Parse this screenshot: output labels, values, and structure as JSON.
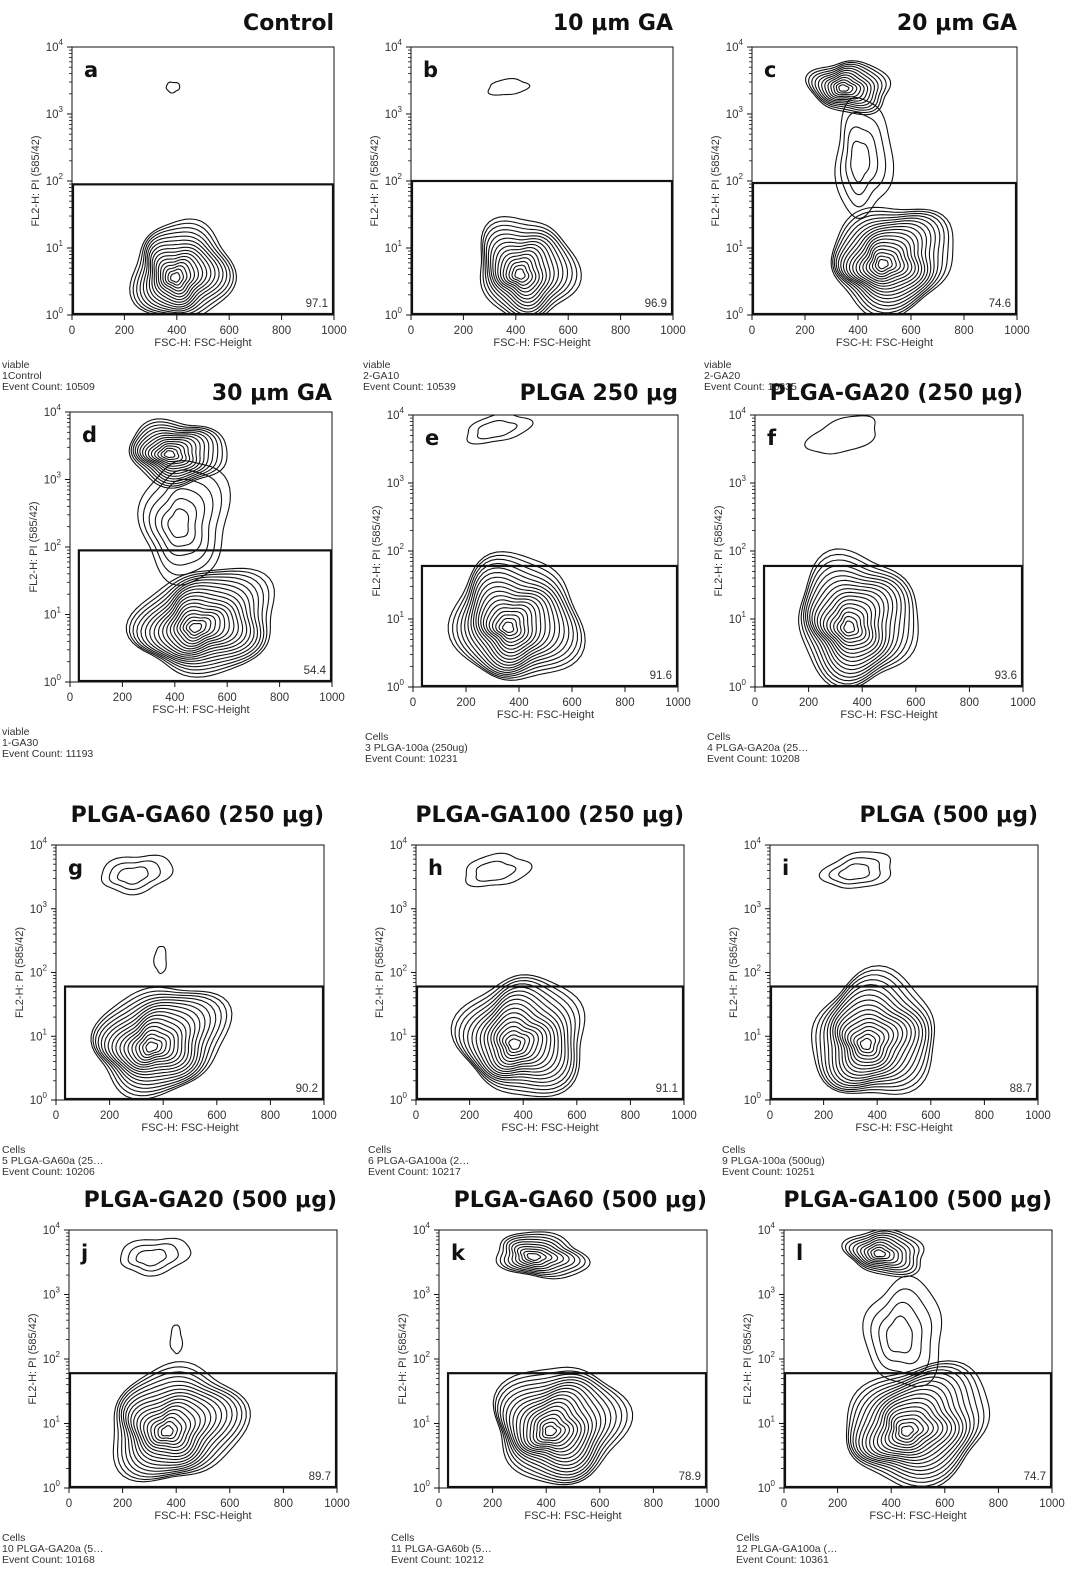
{
  "chart_data": [
    {
      "type": "contour",
      "letter": "a",
      "title": "Control",
      "xlabel": "FSC-H: FSC-Height",
      "ylabel": "FL2-H: PI (585/42)",
      "xlim": [
        0,
        1000
      ],
      "ylim_log10": [
        0,
        4
      ],
      "xticks": [
        "0",
        "200",
        "400",
        "600",
        "800",
        "1000"
      ],
      "gate": {
        "x": [
          0,
          1000
        ],
        "y_max_log10": 1.95,
        "percent": "97.1"
      },
      "populations": [
        {
          "x": 420,
          "y_log10": 0.65,
          "rx": 190,
          "ry": 0.75,
          "angle": 18,
          "levels": 16
        },
        {
          "x": 385,
          "y_log10": 3.4,
          "rx": 25,
          "ry": 0.08,
          "angle": 0,
          "levels": 1
        }
      ],
      "info": [
        "viable",
        "1Control",
        "Event Count: 10509"
      ]
    },
    {
      "type": "contour",
      "letter": "b",
      "title": "10 μm GA",
      "xlabel": "FSC-H: FSC-Height",
      "ylabel": "FL2-H: PI (585/42)",
      "xlim": [
        0,
        1000
      ],
      "ylim_log10": [
        0,
        4
      ],
      "xticks": [
        "0",
        "200",
        "400",
        "600",
        "800",
        "1000"
      ],
      "gate": {
        "x": [
          0,
          1000
        ],
        "y_max_log10": 2.0,
        "percent": "96.9"
      },
      "populations": [
        {
          "x": 440,
          "y_log10": 0.7,
          "rx": 185,
          "ry": 0.78,
          "angle": 18,
          "levels": 15
        },
        {
          "x": 370,
          "y_log10": 3.4,
          "rx": 75,
          "ry": 0.12,
          "angle": 5,
          "levels": 1
        }
      ],
      "info": [
        "viable",
        "2-GA10",
        "Event Count: 10539"
      ]
    },
    {
      "type": "contour",
      "letter": "c",
      "title": "20 μm GA",
      "xlabel": "FSC-H: FSC-Height",
      "ylabel": "FL2-H: PI (585/42)",
      "xlim": [
        0,
        1000
      ],
      "ylim_log10": [
        0,
        4
      ],
      "xticks": [
        "0",
        "200",
        "400",
        "600",
        "800",
        "1000"
      ],
      "gate": {
        "x": [
          0,
          1000
        ],
        "y_max_log10": 1.97,
        "percent": "74.6"
      },
      "populations": [
        {
          "x": 530,
          "y_log10": 0.85,
          "rx": 240,
          "ry": 0.78,
          "angle": 12,
          "levels": 18
        },
        {
          "x": 370,
          "y_log10": 3.4,
          "rx": 150,
          "ry": 0.4,
          "angle": -8,
          "levels": 12
        },
        {
          "x": 420,
          "y_log10": 2.35,
          "rx": 110,
          "ry": 0.85,
          "angle": 0,
          "levels": 4
        }
      ],
      "info": [
        "viable",
        "2-GA20",
        "Event Count: 10835"
      ]
    },
    {
      "type": "contour",
      "letter": "d",
      "title": "30 μm GA",
      "xlabel": "FSC-H: FSC-Height",
      "ylabel": "FL2-H: PI (585/42)",
      "xlim": [
        0,
        1000
      ],
      "ylim_log10": [
        0,
        4
      ],
      "xticks": [
        "0",
        "200",
        "400",
        "600",
        "800",
        "1000"
      ],
      "gate": {
        "x": [
          30,
          1000
        ],
        "y_max_log10": 1.95,
        "percent": "54.4"
      },
      "populations": [
        {
          "x": 520,
          "y_log10": 0.9,
          "rx": 270,
          "ry": 0.8,
          "angle": 12,
          "levels": 18
        },
        {
          "x": 410,
          "y_log10": 3.4,
          "rx": 180,
          "ry": 0.5,
          "angle": -5,
          "levels": 14
        },
        {
          "x": 440,
          "y_log10": 2.4,
          "rx": 170,
          "ry": 0.9,
          "angle": 0,
          "levels": 6
        }
      ],
      "info": [
        "viable",
        "1-GA30",
        "Event Count: 11193"
      ]
    },
    {
      "type": "contour",
      "letter": "e",
      "title": "PLGA 250 μg",
      "xlabel": "FSC-H: FSC-Height",
      "ylabel": "FL2-H: PI (585/42)",
      "xlim": [
        0,
        1000
      ],
      "ylim_log10": [
        0,
        4
      ],
      "xticks": [
        "0",
        "200",
        "400",
        "600",
        "800",
        "1000"
      ],
      "gate": {
        "x": [
          30,
          1000
        ],
        "y_max_log10": 1.78,
        "percent": "91.6"
      },
      "populations": [
        {
          "x": 390,
          "y_log10": 1.0,
          "rx": 240,
          "ry": 0.95,
          "angle": 22,
          "levels": 18
        },
        {
          "x": 320,
          "y_log10": 3.8,
          "rx": 120,
          "ry": 0.2,
          "angle": 12,
          "levels": 2
        }
      ],
      "info": [
        "Cells",
        "3 PLGA-100a (250ug)",
        "Event Count: 10231"
      ]
    },
    {
      "type": "contour",
      "letter": "f",
      "title": "PLGA-GA20 (250 μg)",
      "xlabel": "FSC-H: FSC-Height",
      "ylabel": "FL2-H: PI (585/42)",
      "xlim": [
        0,
        1000
      ],
      "ylim_log10": [
        0,
        4
      ],
      "xticks": [
        "0",
        "200",
        "400",
        "600",
        "800",
        "1000"
      ],
      "gate": {
        "x": [
          30,
          1000
        ],
        "y_max_log10": 1.78,
        "percent": "93.6"
      },
      "populations": [
        {
          "x": 380,
          "y_log10": 1.0,
          "rx": 230,
          "ry": 0.95,
          "angle": 22,
          "levels": 17
        },
        {
          "x": 330,
          "y_log10": 3.7,
          "rx": 130,
          "ry": 0.25,
          "angle": 18,
          "levels": 1
        }
      ],
      "info": [
        "Cells",
        "4 PLGA-GA20a (25…",
        "Event Count: 10208"
      ]
    },
    {
      "type": "contour",
      "letter": "g",
      "title": "PLGA-GA60 (250 μg)",
      "xlabel": "FSC-H: FSC-Height",
      "ylabel": "FL2-H: PI (585/42)",
      "xlim": [
        0,
        1000
      ],
      "ylim_log10": [
        0,
        4
      ],
      "xticks": [
        "0",
        "200",
        "400",
        "600",
        "800",
        "1000"
      ],
      "gate": {
        "x": [
          30,
          1000
        ],
        "y_max_log10": 1.78,
        "percent": "90.2"
      },
      "populations": [
        {
          "x": 390,
          "y_log10": 0.95,
          "rx": 250,
          "ry": 0.85,
          "angle": 20,
          "levels": 17
        },
        {
          "x": 300,
          "y_log10": 3.55,
          "rx": 130,
          "ry": 0.3,
          "angle": 10,
          "levels": 3
        },
        {
          "x": 390,
          "y_log10": 2.2,
          "rx": 22,
          "ry": 0.22,
          "angle": 0,
          "levels": 1
        }
      ],
      "info": [
        "Cells",
        "5 PLGA-GA60a (25…",
        "Event Count: 10206"
      ]
    },
    {
      "type": "contour",
      "letter": "h",
      "title": "PLGA-GA100 (250 μg)",
      "xlabel": "FSC-H: FSC-Height",
      "ylabel": "FL2-H: PI (585/42)",
      "xlim": [
        0,
        1000
      ],
      "ylim_log10": [
        0,
        4
      ],
      "xticks": [
        "0",
        "200",
        "400",
        "600",
        "800",
        "1000"
      ],
      "gate": {
        "x": [
          0,
          1000
        ],
        "y_max_log10": 1.78,
        "percent": "91.1"
      },
      "populations": [
        {
          "x": 400,
          "y_log10": 1.0,
          "rx": 240,
          "ry": 0.95,
          "angle": 20,
          "levels": 17
        },
        {
          "x": 300,
          "y_log10": 3.6,
          "rx": 120,
          "ry": 0.25,
          "angle": 10,
          "levels": 2
        }
      ],
      "info": [
        "Cells",
        "6 PLGA-GA100a (2…",
        "Event Count: 10217"
      ]
    },
    {
      "type": "contour",
      "letter": "i",
      "title": "PLGA (500 μg)",
      "xlabel": "FSC-H: FSC-Height",
      "ylabel": "FL2-H: PI (585/42)",
      "xlim": [
        0,
        1000
      ],
      "ylim_log10": [
        0,
        4
      ],
      "xticks": [
        "0",
        "200",
        "400",
        "600",
        "800",
        "1000"
      ],
      "gate": {
        "x": [
          0,
          1000
        ],
        "y_max_log10": 1.78,
        "percent": "88.7"
      },
      "populations": [
        {
          "x": 390,
          "y_log10": 1.0,
          "rx": 240,
          "ry": 0.95,
          "angle": 20,
          "levels": 17
        },
        {
          "x": 330,
          "y_log10": 3.6,
          "rx": 130,
          "ry": 0.28,
          "angle": 12,
          "levels": 3
        }
      ],
      "info": [
        "Cells",
        "9 PLGA-100a (500ug)",
        "Event Count: 10251"
      ]
    },
    {
      "type": "contour",
      "letter": "j",
      "title": "PLGA-GA20 (500 μg)",
      "xlabel": "FSC-H: FSC-Height",
      "ylabel": "FL2-H: PI (585/42)",
      "xlim": [
        0,
        1000
      ],
      "ylim_log10": [
        0,
        4
      ],
      "xticks": [
        "0",
        "200",
        "400",
        "600",
        "800",
        "1000"
      ],
      "gate": {
        "x": [
          0,
          1000
        ],
        "y_max_log10": 1.78,
        "percent": "89.7"
      },
      "populations": [
        {
          "x": 400,
          "y_log10": 1.0,
          "rx": 250,
          "ry": 0.9,
          "angle": 20,
          "levels": 17
        },
        {
          "x": 320,
          "y_log10": 3.6,
          "rx": 130,
          "ry": 0.28,
          "angle": 10,
          "levels": 3
        },
        {
          "x": 400,
          "y_log10": 2.3,
          "rx": 22,
          "ry": 0.22,
          "angle": 0,
          "levels": 1
        }
      ],
      "info": [
        "Cells",
        "10 PLGA-GA20a (5…",
        "Event Count: 10168"
      ]
    },
    {
      "type": "contour",
      "letter": "k",
      "title": "PLGA-GA60 (500 μg)",
      "xlabel": "FSC-H: FSC-Height",
      "ylabel": "FL2-H: PI (585/42)",
      "xlim": [
        0,
        1000
      ],
      "ylim_log10": [
        0,
        4
      ],
      "xticks": [
        "0",
        "200",
        "400",
        "600",
        "800",
        "1000"
      ],
      "gate": {
        "x": [
          30,
          1000
        ],
        "y_max_log10": 1.78,
        "percent": "78.9"
      },
      "populations": [
        {
          "x": 450,
          "y_log10": 1.0,
          "rx": 250,
          "ry": 0.9,
          "angle": 18,
          "levels": 18
        },
        {
          "x": 380,
          "y_log10": 3.6,
          "rx": 170,
          "ry": 0.35,
          "angle": -5,
          "levels": 10
        }
      ],
      "info": [
        "Cells",
        "11 PLGA-GA60b (5…",
        "Event Count: 10212"
      ]
    },
    {
      "type": "contour",
      "letter": "l",
      "title": "PLGA-GA100 (500 μg)",
      "xlabel": "FSC-H: FSC-Height",
      "ylabel": "FL2-H: PI (585/42)",
      "xlim": [
        0,
        1000
      ],
      "ylim_log10": [
        0,
        4
      ],
      "xticks": [
        "0",
        "200",
        "400",
        "600",
        "800",
        "1000"
      ],
      "gate": {
        "x": [
          0,
          1000
        ],
        "y_max_log10": 1.78,
        "percent": "74.7"
      },
      "populations": [
        {
          "x": 500,
          "y_log10": 1.0,
          "rx": 280,
          "ry": 0.9,
          "angle": 15,
          "levels": 18
        },
        {
          "x": 380,
          "y_log10": 3.65,
          "rx": 150,
          "ry": 0.35,
          "angle": -5,
          "levels": 10
        },
        {
          "x": 450,
          "y_log10": 2.4,
          "rx": 150,
          "ry": 0.8,
          "angle": 0,
          "levels": 4
        }
      ],
      "info": [
        "Cells",
        "12 PLGA-GA100a (…",
        "Event Count: 10361"
      ]
    }
  ]
}
